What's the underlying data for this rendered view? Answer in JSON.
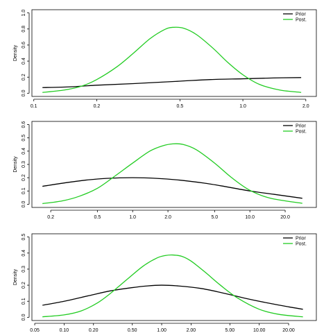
{
  "colors": {
    "prior": "#000000",
    "posterior": "#22cc22"
  },
  "chart_data": [
    {
      "type": "line",
      "x_scale": "log",
      "ylabel": "Density",
      "xlim": [
        0.11,
        2.0
      ],
      "ylim": [
        0,
        1.0
      ],
      "x_ticks": [
        0.1,
        0.2,
        0.5,
        1.0,
        2.0
      ],
      "x_tick_labels": [
        "0.1",
        "0.2",
        "0.5",
        "1.0",
        "2.0"
      ],
      "y_ticks": [
        0,
        0.2,
        0.4,
        0.6,
        0.8,
        1.0
      ],
      "y_tick_labels": [
        "0.0",
        "0.2",
        "0.4",
        "0.6",
        "0.8",
        "1.0"
      ],
      "legend_position": "top-right",
      "series": [
        {
          "name": "Prior",
          "color": "#000000",
          "x": [
            0.11,
            0.15,
            0.2,
            0.3,
            0.5,
            0.7,
            1.0,
            1.4,
            1.9
          ],
          "y": [
            0.07,
            0.08,
            0.1,
            0.12,
            0.15,
            0.17,
            0.18,
            0.19,
            0.195
          ]
        },
        {
          "name": "Post.",
          "color": "#22cc22",
          "x": [
            0.11,
            0.14,
            0.17,
            0.2,
            0.25,
            0.3,
            0.36,
            0.42,
            0.46,
            0.52,
            0.6,
            0.72,
            0.85,
            1.0,
            1.2,
            1.5,
            1.9
          ],
          "y": [
            0.01,
            0.04,
            0.09,
            0.17,
            0.33,
            0.5,
            0.68,
            0.79,
            0.82,
            0.81,
            0.73,
            0.56,
            0.38,
            0.23,
            0.11,
            0.04,
            0.01
          ]
        }
      ]
    },
    {
      "type": "line",
      "x_scale": "log",
      "ylabel": "Density",
      "xlim": [
        0.17,
        30
      ],
      "ylim": [
        0,
        0.6
      ],
      "x_ticks": [
        0.2,
        0.5,
        1.0,
        2.0,
        5.0,
        10.0,
        20.0
      ],
      "x_tick_labels": [
        "0.2",
        "0.5",
        "1.0",
        "2.0",
        "5.0",
        "10.0",
        "20.0"
      ],
      "y_ticks": [
        0,
        0.1,
        0.2,
        0.3,
        0.4,
        0.5,
        0.6
      ],
      "y_tick_labels": [
        "0.0",
        "0.1",
        "0.2",
        "0.3",
        "0.4",
        "0.5",
        "0.6"
      ],
      "legend_position": "top-right",
      "series": [
        {
          "name": "Prior",
          "color": "#000000",
          "x": [
            0.17,
            0.25,
            0.4,
            0.6,
            1.0,
            1.6,
            2.5,
            4.0,
            6.0,
            10.0,
            16.0,
            28.0
          ],
          "y": [
            0.135,
            0.158,
            0.182,
            0.195,
            0.2,
            0.195,
            0.182,
            0.16,
            0.135,
            0.1,
            0.075,
            0.045
          ]
        },
        {
          "name": "Post.",
          "color": "#22cc22",
          "x": [
            0.17,
            0.25,
            0.35,
            0.5,
            0.7,
            1.0,
            1.4,
            1.8,
            2.2,
            2.7,
            3.5,
            5.0,
            7.0,
            10.0,
            15.0,
            28.0
          ],
          "y": [
            0.005,
            0.025,
            0.06,
            0.12,
            0.21,
            0.31,
            0.4,
            0.44,
            0.455,
            0.45,
            0.41,
            0.31,
            0.2,
            0.105,
            0.045,
            0.007
          ]
        }
      ]
    },
    {
      "type": "line",
      "x_scale": "log",
      "ylabel": "Density",
      "xlim": [
        0.06,
        30
      ],
      "ylim": [
        0,
        0.5
      ],
      "x_ticks": [
        0.05,
        0.1,
        0.2,
        0.5,
        1.0,
        2.0,
        5.0,
        10.0,
        20.0
      ],
      "x_tick_labels": [
        "0.05",
        "0.10",
        "0.20",
        "0.50",
        "1.00",
        "2.00",
        "5.00",
        "10.00",
        "20.00"
      ],
      "y_ticks": [
        0,
        0.1,
        0.2,
        0.3,
        0.4,
        0.5
      ],
      "y_tick_labels": [
        "0.0",
        "0.1",
        "0.2",
        "0.3",
        "0.4",
        "0.5"
      ],
      "legend_position": "top-right",
      "series": [
        {
          "name": "Prior",
          "color": "#000000",
          "x": [
            0.06,
            0.1,
            0.18,
            0.3,
            0.5,
            0.7,
            1.0,
            1.5,
            2.5,
            4.0,
            7.0,
            12.0,
            20.0,
            28.0
          ],
          "y": [
            0.075,
            0.1,
            0.135,
            0.165,
            0.185,
            0.195,
            0.2,
            0.195,
            0.18,
            0.155,
            0.12,
            0.09,
            0.065,
            0.05
          ]
        },
        {
          "name": "Post.",
          "color": "#22cc22",
          "x": [
            0.06,
            0.1,
            0.15,
            0.22,
            0.3,
            0.45,
            0.65,
            0.9,
            1.1,
            1.3,
            1.6,
            2.0,
            2.8,
            4.0,
            6.0,
            10.0,
            16.0,
            28.0
          ],
          "y": [
            0.003,
            0.015,
            0.04,
            0.09,
            0.15,
            0.24,
            0.32,
            0.37,
            0.385,
            0.388,
            0.38,
            0.35,
            0.28,
            0.2,
            0.12,
            0.05,
            0.018,
            0.003
          ]
        }
      ]
    }
  ]
}
